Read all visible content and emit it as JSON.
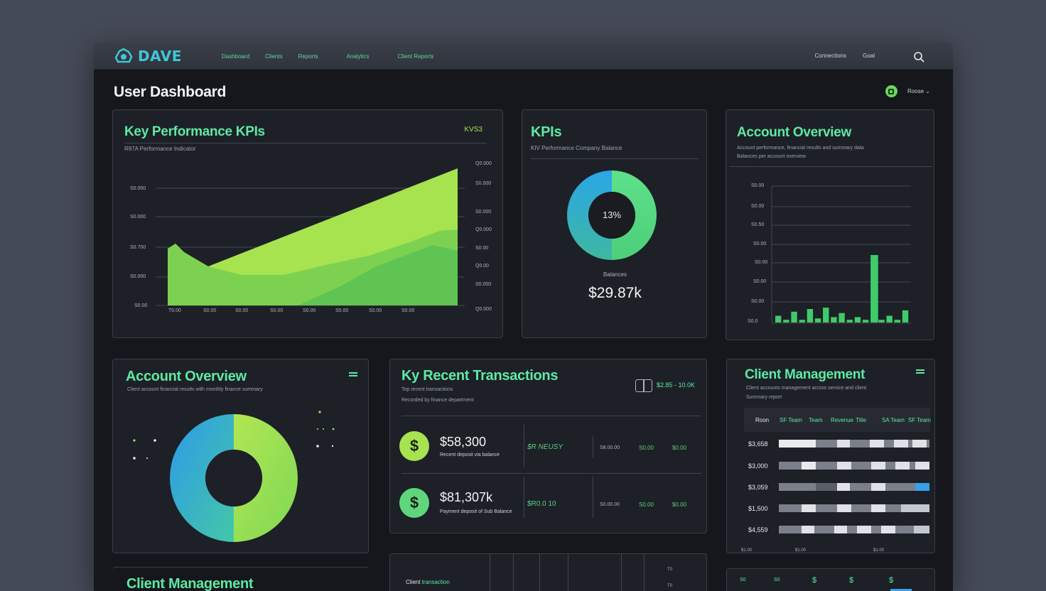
{
  "app": {
    "name": "DAVE",
    "page_title": "User Dashboard"
  },
  "nav": {
    "items": [
      "Dashboard",
      "Clients",
      "Reports",
      "Analytics",
      "Client Reports"
    ]
  },
  "header": {
    "right_link": "Connections",
    "right_link2": "Goal",
    "user_name": "Roose"
  },
  "colors": {
    "accent": "#5ee9a3",
    "lime": "#a6e34f",
    "blue": "#3aa0e8"
  },
  "kpi_area": {
    "title": "Key Performance KPIs",
    "badge": "KVS3",
    "subtitle": "R97A  Performance Indicator",
    "y_left_ticks": [
      "S0.000",
      "S0.000",
      "S0.700",
      "S0.000",
      "S0.00"
    ],
    "y_right_ticks": [
      "Q0.000",
      "S0.000",
      "S0.000",
      "Q0.000",
      "S0.00",
      "Q0.00",
      "S0.000",
      "Q0.000"
    ],
    "x_ticks": [
      "T0.00",
      "S0.00",
      "S0.00",
      "S0.00",
      "S0.00",
      "S0.00",
      "S0.00",
      "S0.00"
    ]
  },
  "kpis": {
    "title": "KPIs",
    "subtitle": "KIV Performance Company Balance",
    "donut_center": "13%",
    "caption": "Balances",
    "value": "$29.87k",
    "share_blue": 0.5
  },
  "account_overview_bar": {
    "title": "Account Overview",
    "subtitle_line1": "Account performance, financial results and summary data",
    "subtitle_line2": "Balances per account overview",
    "y_ticks": [
      "S0.00",
      "S0.00",
      "S0.50",
      "S0.00",
      "S0.00",
      "S0.00",
      "S0.00",
      "S0.0"
    ],
    "bars": [
      0.05,
      0.02,
      0.08,
      0.02,
      0.1,
      0.03,
      0.11,
      0.04,
      0.07,
      0.02,
      0.04,
      0.02,
      0.5,
      0.02,
      0.05,
      0.02,
      0.09
    ]
  },
  "account_overview_donut": {
    "title": "Account Overview",
    "subtitle": "Client account financial results with monthly finance summary",
    "lime_share": 0.5
  },
  "recent_transactions": {
    "title": "Ky Recent Transactions",
    "link": "$2.85 - 10.0K",
    "subtitle_line1": "Top recent transactions",
    "subtitle_line2": "Recorded by finance department",
    "rows": [
      {
        "amount": "$58,300",
        "desc": "Recent deposit via balance",
        "status": "$R NEUSY",
        "c1": "S8.00.00",
        "c2": "S0.00",
        "c3": "$0.00"
      },
      {
        "amount": "$81,307k",
        "desc": "Payment deposit of Sub Balance",
        "status": "$R0.0 10",
        "c1": "S0.00.00",
        "c2": "S0.00",
        "c3": "$0.00"
      }
    ]
  },
  "client_management": {
    "title": "Client Management",
    "subtitle_line1": "Client accounts management across service and client",
    "subtitle_line2": "Summary report",
    "columns": [
      "Roon",
      "SF Team",
      "Team",
      "Revenue",
      "Title",
      "SA Team",
      "SF Team"
    ],
    "rows": [
      "$3,658",
      "$3,000",
      "$3,059",
      "$1,500",
      "$4,559"
    ],
    "footer_ticks": [
      "$1.00",
      "$1.00",
      "$1.00"
    ]
  },
  "client_management_2": {
    "title": "Client Management"
  },
  "bottom_table": {
    "label": "Client",
    "label2": "transaction",
    "ticks": [
      "T0",
      "T0"
    ]
  },
  "bottom_right": {
    "ticks": [
      "S0",
      "S0",
      "$",
      "$",
      "$"
    ]
  }
}
